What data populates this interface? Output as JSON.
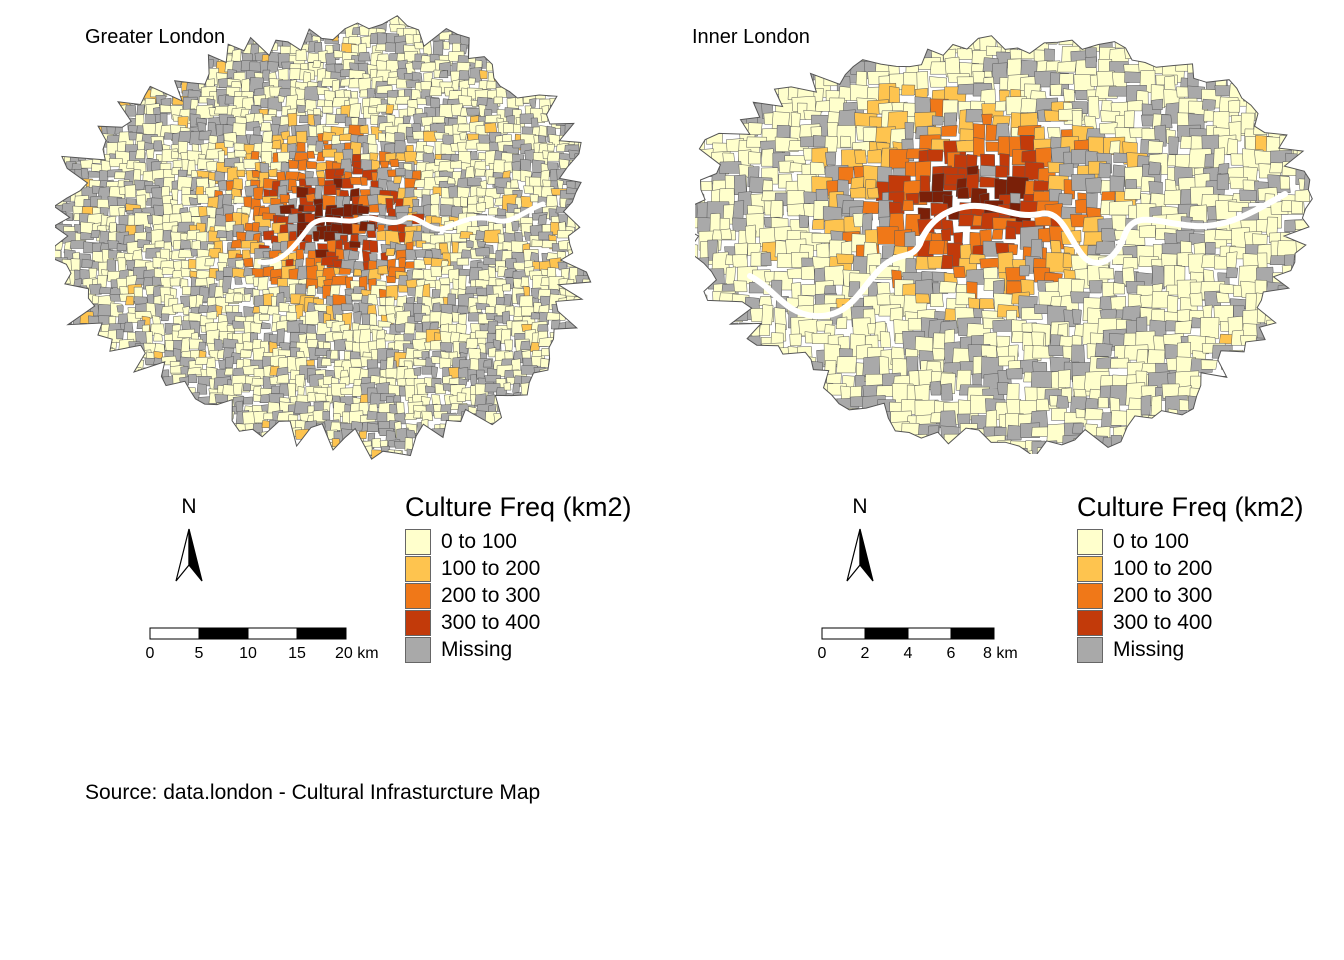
{
  "panels": [
    {
      "title": "Greater London",
      "north_label": "N",
      "scalebar": {
        "ticks": [
          "0",
          "5",
          "10",
          "15",
          "20 km"
        ]
      },
      "legend": {
        "title": "Culture Freq (km2)",
        "entries": [
          {
            "label": "0 to 100",
            "color": "#ffffcc"
          },
          {
            "label": "100 to 200",
            "color": "#fec44f"
          },
          {
            "label": "200 to 300",
            "color": "#f07818"
          },
          {
            "label": "300 to 400",
            "color": "#c23a0a"
          },
          {
            "label": "Missing",
            "color": "#a9a9a9"
          }
        ]
      }
    },
    {
      "title": "Inner London",
      "north_label": "N",
      "scalebar": {
        "ticks": [
          "0",
          "2",
          "4",
          "6",
          "8 km"
        ]
      },
      "legend": {
        "title": "Culture Freq (km2)",
        "entries": [
          {
            "label": "0 to 100",
            "color": "#ffffcc"
          },
          {
            "label": "100 to 200",
            "color": "#fec44f"
          },
          {
            "label": "200 to 300",
            "color": "#f07818"
          },
          {
            "label": "300 to 400",
            "color": "#c23a0a"
          },
          {
            "label": "Missing",
            "color": "#a9a9a9"
          }
        ]
      }
    }
  ],
  "source": "Source: data.london - Cultural Infrasturcture Map",
  "colors": {
    "center_dark": "#7a2008",
    "river": "#ffffff",
    "border": "#555555"
  }
}
